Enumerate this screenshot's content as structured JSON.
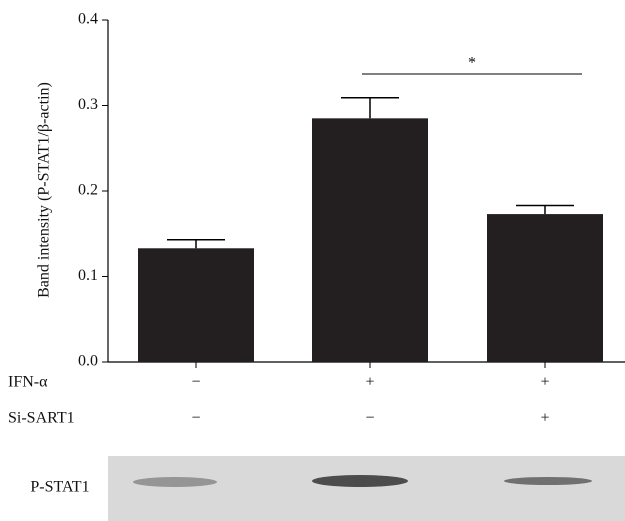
{
  "chart_data": {
    "type": "bar",
    "y_label": "Band intensity (P-STAT1/β-actin)",
    "categories": [
      null,
      null,
      null
    ],
    "values": [
      0.133,
      0.285,
      0.173
    ],
    "errors": [
      0.01,
      0.024,
      0.01
    ],
    "color": "#231f20",
    "ylim": [
      0,
      0.4
    ],
    "yticks": [
      {
        "value": 0,
        "label": "0.0"
      },
      0.1,
      0.2,
      0.3,
      0.4
    ],
    "annotations": [
      {
        "text": "*",
        "from": 1,
        "to": 2
      }
    ],
    "conditions": [
      {
        "label": "IFN-α",
        "values": [
          "−",
          "+",
          "+"
        ]
      },
      {
        "label": "Si-SART1",
        "values": [
          "−",
          "−",
          "+"
        ]
      }
    ],
    "blot": {
      "label": "P-STAT1"
    }
  }
}
